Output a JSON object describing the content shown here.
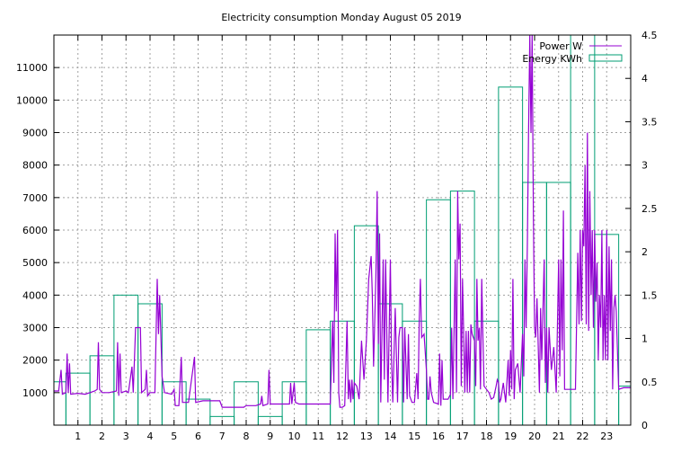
{
  "colors": {
    "power": "#9400d3",
    "energy": "#009e73",
    "grid": "#a0a0a0"
  },
  "chart_data": {
    "type": "line",
    "title": "Electricity consumption Monday August 05 2019",
    "xlabel": "",
    "ylabel": "",
    "y2label": "",
    "xlim": [
      0,
      24
    ],
    "ylim": [
      0,
      12000
    ],
    "y2lim": [
      0,
      4.5
    ],
    "x_ticks": [
      1,
      2,
      3,
      4,
      5,
      6,
      7,
      8,
      9,
      10,
      11,
      12,
      13,
      14,
      15,
      16,
      17,
      18,
      19,
      20,
      21,
      22,
      23
    ],
    "y_ticks": [
      1000,
      2000,
      3000,
      4000,
      5000,
      6000,
      7000,
      8000,
      9000,
      10000,
      11000
    ],
    "y2_ticks": [
      0,
      0.5,
      1,
      1.5,
      2,
      2.5,
      3,
      3.5,
      4,
      4.5
    ],
    "y2_tick_labels": [
      "0",
      "0.5",
      "1",
      "1.5",
      "2",
      "2.5",
      "3",
      "3.5",
      "4",
      "4.5"
    ],
    "grid": true,
    "legend": "top-right",
    "series": [
      {
        "name": "Power W",
        "type": "line",
        "axis": "y",
        "points": [
          [
            0,
            1050
          ],
          [
            0.2,
            1050
          ],
          [
            0.3,
            1700
          ],
          [
            0.35,
            950
          ],
          [
            0.5,
            1000
          ],
          [
            0.55,
            2200
          ],
          [
            0.6,
            1000
          ],
          [
            0.65,
            1900
          ],
          [
            0.7,
            950
          ],
          [
            1.0,
            980
          ],
          [
            1.3,
            950
          ],
          [
            1.5,
            1000
          ],
          [
            1.7,
            1050
          ],
          [
            1.8,
            1100
          ],
          [
            1.85,
            2550
          ],
          [
            1.9,
            1100
          ],
          [
            2.0,
            1000
          ],
          [
            2.3,
            1000
          ],
          [
            2.6,
            1050
          ],
          [
            2.65,
            2550
          ],
          [
            2.7,
            900
          ],
          [
            2.75,
            2200
          ],
          [
            2.8,
            1000
          ],
          [
            3.0,
            1050
          ],
          [
            3.1,
            1000
          ],
          [
            3.25,
            1800
          ],
          [
            3.3,
            1000
          ],
          [
            3.4,
            3000
          ],
          [
            3.6,
            3000
          ],
          [
            3.65,
            1000
          ],
          [
            3.8,
            1100
          ],
          [
            3.85,
            1700
          ],
          [
            3.9,
            900
          ],
          [
            4.0,
            1000
          ],
          [
            4.2,
            1000
          ],
          [
            4.3,
            4500
          ],
          [
            4.35,
            2800
          ],
          [
            4.4,
            4000
          ],
          [
            4.45,
            2800
          ],
          [
            4.5,
            1500
          ],
          [
            4.6,
            1000
          ],
          [
            4.9,
            950
          ],
          [
            5.0,
            1100
          ],
          [
            5.05,
            600
          ],
          [
            5.2,
            600
          ],
          [
            5.3,
            2100
          ],
          [
            5.35,
            700
          ],
          [
            5.6,
            700
          ],
          [
            5.85,
            2100
          ],
          [
            5.9,
            700
          ],
          [
            6.2,
            750
          ],
          [
            6.6,
            750
          ],
          [
            6.9,
            750
          ],
          [
            7.0,
            550
          ],
          [
            7.5,
            550
          ],
          [
            7.9,
            550
          ],
          [
            8.0,
            600
          ],
          [
            8.4,
            600
          ],
          [
            8.6,
            650
          ],
          [
            8.65,
            900
          ],
          [
            8.7,
            600
          ],
          [
            8.9,
            650
          ],
          [
            8.95,
            1700
          ],
          [
            9.0,
            650
          ],
          [
            9.4,
            650
          ],
          [
            9.8,
            650
          ],
          [
            9.85,
            1300
          ],
          [
            9.9,
            650
          ],
          [
            10.0,
            1300
          ],
          [
            10.05,
            700
          ],
          [
            10.2,
            650
          ],
          [
            10.5,
            650
          ],
          [
            10.9,
            650
          ],
          [
            11.2,
            650
          ],
          [
            11.4,
            650
          ],
          [
            11.5,
            650
          ],
          [
            11.6,
            3200
          ],
          [
            11.65,
            1300
          ],
          [
            11.7,
            5900
          ],
          [
            11.75,
            3500
          ],
          [
            11.8,
            6000
          ],
          [
            11.82,
            4500
          ],
          [
            11.85,
            1000
          ],
          [
            11.9,
            550
          ],
          [
            12.0,
            550
          ],
          [
            12.1,
            600
          ],
          [
            12.2,
            3200
          ],
          [
            12.25,
            800
          ],
          [
            12.3,
            1400
          ],
          [
            12.35,
            700
          ],
          [
            12.4,
            1400
          ],
          [
            12.45,
            800
          ],
          [
            12.5,
            1300
          ],
          [
            12.6,
            1200
          ],
          [
            12.7,
            800
          ],
          [
            12.8,
            2600
          ],
          [
            12.9,
            1400
          ],
          [
            13.0,
            2600
          ],
          [
            13.1,
            4500
          ],
          [
            13.2,
            5200
          ],
          [
            13.25,
            4000
          ],
          [
            13.3,
            1800
          ],
          [
            13.4,
            4600
          ],
          [
            13.45,
            7200
          ],
          [
            13.5,
            2500
          ],
          [
            13.55,
            5900
          ],
          [
            13.6,
            700
          ],
          [
            13.7,
            5100
          ],
          [
            13.75,
            1400
          ],
          [
            13.8,
            5100
          ],
          [
            13.9,
            700
          ],
          [
            14.0,
            5100
          ],
          [
            14.05,
            2000
          ],
          [
            14.1,
            700
          ],
          [
            14.2,
            3600
          ],
          [
            14.3,
            700
          ],
          [
            14.35,
            2700
          ],
          [
            14.4,
            3000
          ],
          [
            14.5,
            3000
          ],
          [
            14.55,
            700
          ],
          [
            14.6,
            3000
          ],
          [
            14.7,
            800
          ],
          [
            14.75,
            2800
          ],
          [
            14.8,
            900
          ],
          [
            14.9,
            700
          ],
          [
            15.0,
            700
          ],
          [
            15.1,
            1600
          ],
          [
            15.15,
            800
          ],
          [
            15.2,
            3200
          ],
          [
            15.25,
            4500
          ],
          [
            15.3,
            2700
          ],
          [
            15.4,
            2800
          ],
          [
            15.5,
            1700
          ],
          [
            15.55,
            800
          ],
          [
            15.6,
            800
          ],
          [
            15.65,
            1500
          ],
          [
            15.7,
            1000
          ],
          [
            15.8,
            700
          ],
          [
            16.0,
            650
          ],
          [
            16.05,
            2200
          ],
          [
            16.1,
            600
          ],
          [
            16.15,
            2000
          ],
          [
            16.2,
            800
          ],
          [
            16.4,
            800
          ],
          [
            16.5,
            950
          ],
          [
            16.55,
            3000
          ],
          [
            16.6,
            800
          ],
          [
            16.7,
            5100
          ],
          [
            16.75,
            1000
          ],
          [
            16.8,
            7200
          ],
          [
            16.85,
            5100
          ],
          [
            16.9,
            6200
          ],
          [
            16.95,
            1200
          ],
          [
            17.0,
            4500
          ],
          [
            17.05,
            2800
          ],
          [
            17.1,
            1000
          ],
          [
            17.15,
            2900
          ],
          [
            17.2,
            1000
          ],
          [
            17.25,
            2900
          ],
          [
            17.3,
            1000
          ],
          [
            17.35,
            3100
          ],
          [
            17.4,
            2800
          ],
          [
            17.5,
            2600
          ],
          [
            17.55,
            1200
          ],
          [
            17.6,
            4500
          ],
          [
            17.65,
            2600
          ],
          [
            17.7,
            3000
          ],
          [
            17.75,
            1100
          ],
          [
            17.8,
            4500
          ],
          [
            17.85,
            2700
          ],
          [
            17.9,
            1200
          ],
          [
            18.0,
            1100
          ],
          [
            18.1,
            1000
          ],
          [
            18.2,
            800
          ],
          [
            18.3,
            850
          ],
          [
            18.4,
            1200
          ],
          [
            18.45,
            1400
          ],
          [
            18.5,
            1300
          ],
          [
            18.55,
            700
          ],
          [
            18.6,
            800
          ],
          [
            18.7,
            1300
          ],
          [
            18.8,
            700
          ],
          [
            18.9,
            2000
          ],
          [
            18.95,
            900
          ],
          [
            19.0,
            2300
          ],
          [
            19.05,
            1100
          ],
          [
            19.1,
            4500
          ],
          [
            19.15,
            800
          ],
          [
            19.2,
            1700
          ],
          [
            19.3,
            1900
          ],
          [
            19.4,
            1000
          ],
          [
            19.5,
            2800
          ],
          [
            19.55,
            1500
          ],
          [
            19.6,
            5100
          ],
          [
            19.65,
            3000
          ],
          [
            19.7,
            5600
          ],
          [
            19.75,
            9000
          ],
          [
            19.8,
            12000
          ],
          [
            19.85,
            9000
          ],
          [
            19.9,
            12000
          ],
          [
            19.95,
            6400
          ],
          [
            20.0,
            3000
          ],
          [
            20.05,
            2700
          ],
          [
            20.1,
            3900
          ],
          [
            20.2,
            1000
          ],
          [
            20.25,
            3600
          ],
          [
            20.3,
            2000
          ],
          [
            20.4,
            5100
          ],
          [
            20.45,
            1300
          ],
          [
            20.5,
            3000
          ],
          [
            20.55,
            1000
          ],
          [
            20.6,
            3000
          ],
          [
            20.7,
            1700
          ],
          [
            20.8,
            2400
          ],
          [
            20.9,
            1000
          ],
          [
            21.0,
            5100
          ],
          [
            21.05,
            1500
          ],
          [
            21.1,
            5100
          ],
          [
            21.15,
            2300
          ],
          [
            21.2,
            6600
          ],
          [
            21.25,
            1100
          ],
          [
            21.5,
            1100
          ],
          [
            21.7,
            1100
          ],
          [
            21.8,
            5300
          ],
          [
            21.85,
            3100
          ],
          [
            21.9,
            6000
          ],
          [
            21.95,
            3200
          ],
          [
            22.0,
            6000
          ],
          [
            22.05,
            5500
          ],
          [
            22.1,
            8000
          ],
          [
            22.15,
            3100
          ],
          [
            22.2,
            9000
          ],
          [
            22.25,
            2900
          ],
          [
            22.3,
            7200
          ],
          [
            22.35,
            4000
          ],
          [
            22.4,
            6000
          ],
          [
            22.45,
            3000
          ],
          [
            22.5,
            6000
          ],
          [
            22.55,
            3800
          ],
          [
            22.6,
            5000
          ],
          [
            22.65,
            2000
          ],
          [
            22.7,
            4000
          ],
          [
            22.75,
            3000
          ],
          [
            22.8,
            6000
          ],
          [
            22.85,
            2000
          ],
          [
            22.9,
            4000
          ],
          [
            22.95,
            2000
          ],
          [
            23.0,
            6000
          ],
          [
            23.05,
            2000
          ],
          [
            23.1,
            5500
          ],
          [
            23.15,
            2900
          ],
          [
            23.2,
            5100
          ],
          [
            23.25,
            1100
          ],
          [
            23.3,
            3600
          ],
          [
            23.35,
            4000
          ],
          [
            23.4,
            3500
          ],
          [
            23.5,
            1100
          ],
          [
            23.7,
            1150
          ],
          [
            24.0,
            1150
          ]
        ]
      },
      {
        "name": "Energy KWh",
        "type": "histeps",
        "axis": "y2",
        "values": [
          0.5,
          0.6,
          0.8,
          1.5,
          1.4,
          0.5,
          0.3,
          0.1,
          0.5,
          0.1,
          0.5,
          1.1,
          1.2,
          2.3,
          1.4,
          1.2,
          2.6,
          2.7,
          1.2,
          3.9,
          2.8,
          2.8,
          4.5,
          2.2,
          0.45
        ]
      }
    ]
  }
}
